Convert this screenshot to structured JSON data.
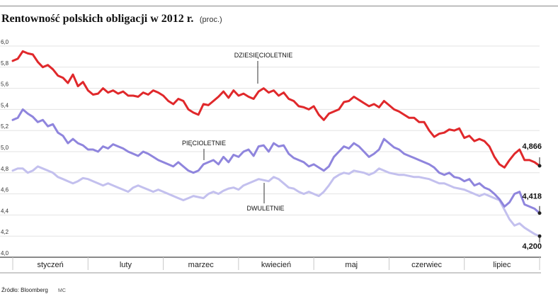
{
  "title": "Rentowność polskich obligacji w 2012 r.",
  "unit": "(proc.)",
  "source": "Źródło: Bloomberg",
  "credit": "MC",
  "chart_data": {
    "type": "line",
    "ylim": [
      4.0,
      6.0
    ],
    "yticks": [
      "4,0",
      "4,2",
      "4,4",
      "4,6",
      "4,8",
      "5,0",
      "5,2",
      "5,4",
      "5,6",
      "5,8",
      "6,0"
    ],
    "ytick_values": [
      4.0,
      4.2,
      4.4,
      4.6,
      4.8,
      5.0,
      5.2,
      5.4,
      5.6,
      5.8,
      6.0
    ],
    "months": [
      "styczeń",
      "luty",
      "marzec",
      "kwiecień",
      "maj",
      "czerwiec",
      "lipiec"
    ],
    "grid": true,
    "series": [
      {
        "name": "DZIESIĘCIOLETNIE",
        "color": "#e0282b",
        "end_label": "4,866",
        "values": [
          5.86,
          5.88,
          5.95,
          5.93,
          5.92,
          5.85,
          5.8,
          5.82,
          5.78,
          5.72,
          5.7,
          5.65,
          5.73,
          5.62,
          5.66,
          5.58,
          5.54,
          5.55,
          5.6,
          5.56,
          5.58,
          5.55,
          5.57,
          5.53,
          5.53,
          5.52,
          5.56,
          5.54,
          5.58,
          5.56,
          5.53,
          5.48,
          5.45,
          5.5,
          5.48,
          5.4,
          5.37,
          5.35,
          5.45,
          5.44,
          5.48,
          5.52,
          5.57,
          5.51,
          5.58,
          5.53,
          5.55,
          5.52,
          5.5,
          5.57,
          5.6,
          5.56,
          5.58,
          5.53,
          5.56,
          5.5,
          5.48,
          5.43,
          5.42,
          5.4,
          5.43,
          5.35,
          5.3,
          5.36,
          5.38,
          5.4,
          5.47,
          5.48,
          5.52,
          5.49,
          5.46,
          5.43,
          5.45,
          5.42,
          5.48,
          5.44,
          5.4,
          5.38,
          5.35,
          5.32,
          5.32,
          5.28,
          5.28,
          5.2,
          5.14,
          5.17,
          5.18,
          5.21,
          5.2,
          5.22,
          5.13,
          5.15,
          5.1,
          5.12,
          5.1,
          5.05,
          4.95,
          4.88,
          4.85,
          4.92,
          4.98,
          5.02,
          4.92,
          4.92,
          4.9,
          4.866
        ]
      },
      {
        "name": "PIĘCIOLETNIE",
        "color": "#8f85dd",
        "end_label": "4,418",
        "values": [
          5.3,
          5.32,
          5.4,
          5.36,
          5.33,
          5.28,
          5.3,
          5.24,
          5.26,
          5.18,
          5.15,
          5.08,
          5.12,
          5.08,
          5.06,
          5.02,
          5.02,
          5.0,
          5.05,
          5.03,
          5.07,
          5.05,
          5.03,
          5.0,
          4.98,
          4.96,
          5.0,
          4.98,
          4.95,
          4.92,
          4.9,
          4.88,
          4.86,
          4.9,
          4.86,
          4.82,
          4.8,
          4.82,
          4.88,
          4.9,
          4.92,
          4.88,
          4.95,
          4.9,
          4.97,
          4.95,
          5.0,
          5.02,
          4.96,
          5.05,
          5.06,
          5.0,
          5.08,
          5.05,
          5.06,
          4.98,
          4.94,
          4.92,
          4.9,
          4.86,
          4.88,
          4.85,
          4.82,
          4.86,
          4.95,
          5.0,
          5.05,
          5.03,
          5.08,
          5.05,
          5.0,
          4.95,
          4.98,
          5.02,
          5.12,
          5.08,
          5.04,
          5.02,
          4.98,
          4.96,
          4.94,
          4.92,
          4.9,
          4.88,
          4.85,
          4.8,
          4.78,
          4.8,
          4.76,
          4.75,
          4.72,
          4.74,
          4.68,
          4.7,
          4.66,
          4.64,
          4.6,
          4.55,
          4.48,
          4.52,
          4.6,
          4.62,
          4.5,
          4.48,
          4.46,
          4.418
        ]
      },
      {
        "name": "DWULETNIE",
        "color": "#c3c0ee",
        "end_label": "4,200",
        "values": [
          4.82,
          4.84,
          4.84,
          4.8,
          4.82,
          4.86,
          4.84,
          4.82,
          4.8,
          4.76,
          4.74,
          4.72,
          4.7,
          4.72,
          4.75,
          4.74,
          4.72,
          4.7,
          4.68,
          4.7,
          4.68,
          4.66,
          4.64,
          4.62,
          4.66,
          4.68,
          4.66,
          4.64,
          4.62,
          4.64,
          4.62,
          4.6,
          4.58,
          4.56,
          4.54,
          4.56,
          4.58,
          4.57,
          4.56,
          4.6,
          4.62,
          4.6,
          4.63,
          4.65,
          4.66,
          4.64,
          4.68,
          4.7,
          4.72,
          4.74,
          4.73,
          4.72,
          4.76,
          4.74,
          4.7,
          4.66,
          4.65,
          4.62,
          4.6,
          4.62,
          4.6,
          4.58,
          4.62,
          4.68,
          4.75,
          4.78,
          4.8,
          4.79,
          4.82,
          4.81,
          4.8,
          4.78,
          4.8,
          4.84,
          4.82,
          4.8,
          4.79,
          4.78,
          4.78,
          4.77,
          4.76,
          4.76,
          4.75,
          4.74,
          4.72,
          4.7,
          4.7,
          4.68,
          4.66,
          4.65,
          4.64,
          4.62,
          4.6,
          4.58,
          4.6,
          4.58,
          4.56,
          4.54,
          4.45,
          4.36,
          4.3,
          4.32,
          4.28,
          4.25,
          4.22,
          4.2
        ]
      }
    ]
  }
}
